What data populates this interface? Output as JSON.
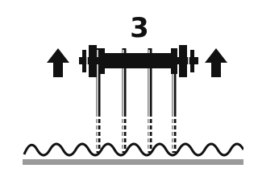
{
  "label": "3"
}
